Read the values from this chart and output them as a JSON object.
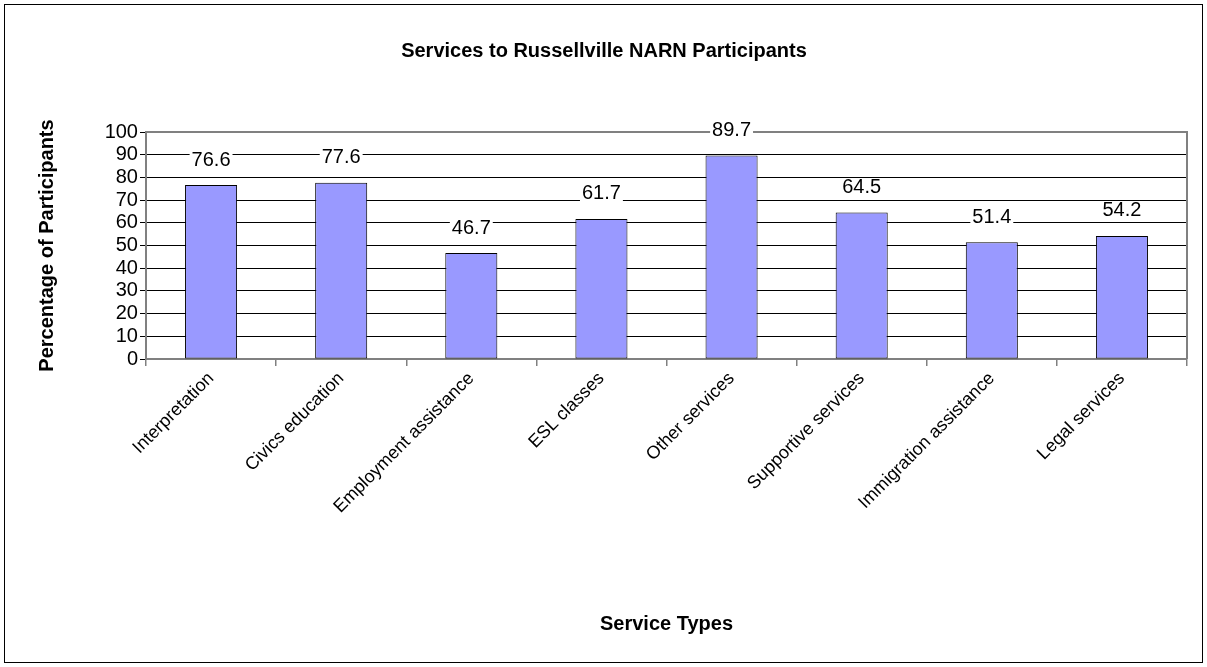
{
  "chart_data": {
    "type": "bar",
    "title": "Services to Russellville NARN Participants",
    "xlabel": "Service Types",
    "ylabel": "Percentage of Participants",
    "categories": [
      "Interpretation",
      "Civics education",
      "Employment assistance",
      "ESL classes",
      "Other services",
      "Supportive services",
      "Immigration assistance",
      "Legal services"
    ],
    "values": [
      76.6,
      77.6,
      46.7,
      61.7,
      89.7,
      64.5,
      51.4,
      54.2
    ],
    "color": "#9999ff",
    "ylim": [
      0,
      100
    ],
    "yticks": [
      0,
      10,
      20,
      30,
      40,
      50,
      60,
      70,
      80,
      90,
      100
    ],
    "grid": "y",
    "data_labels": true
  }
}
